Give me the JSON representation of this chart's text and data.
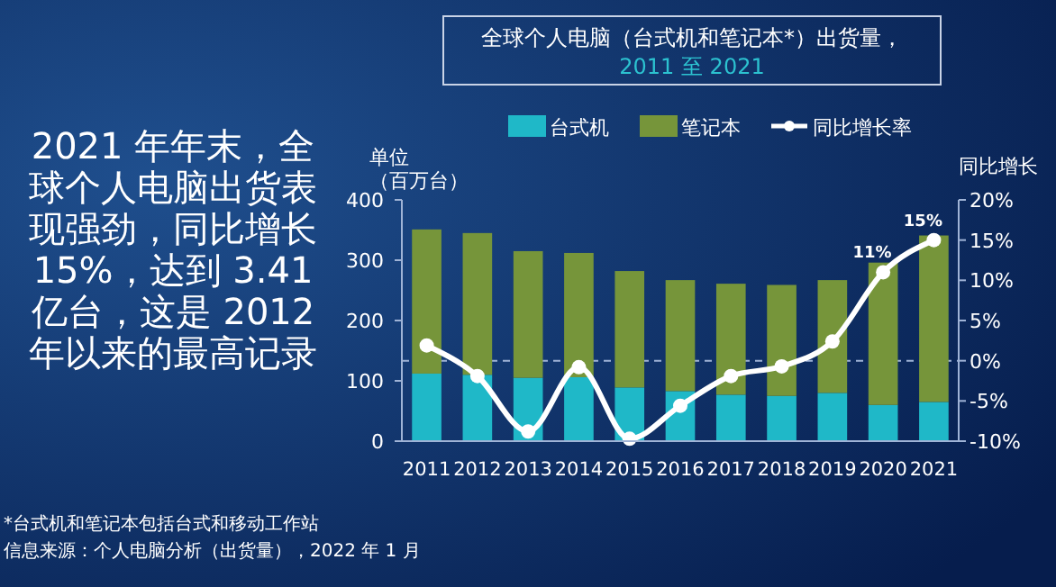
{
  "chart_data": {
    "type": "bar",
    "stacked": true,
    "title": "全球个人电脑（台式机和笔记本*）出货量，",
    "subtitle": "2011 至 2021",
    "ylabel": "单位（百万台）",
    "y2label": "同比增长",
    "categories": [
      "2011",
      "2012",
      "2013",
      "2014",
      "2015",
      "2016",
      "2017",
      "2018",
      "2019",
      "2020",
      "2021"
    ],
    "series": [
      {
        "name": "台式机",
        "color": "#1fb8c8",
        "values": [
          112,
          110,
          105,
          106,
          89,
          83,
          77,
          75,
          80,
          60,
          65
        ]
      },
      {
        "name": "笔记本",
        "color": "#76953a",
        "values": [
          239,
          235,
          210,
          206,
          193,
          184,
          184,
          184,
          187,
          236,
          276
        ]
      },
      {
        "name": "同比增长率",
        "type": "line",
        "axis": "y2",
        "color": "#ffffff",
        "marker": "circle",
        "values": [
          1.9,
          -1.9,
          -8.8,
          -0.8,
          -9.7,
          -5.6,
          -1.9,
          -0.7,
          2.4,
          11,
          15
        ],
        "value_labels": [
          null,
          null,
          null,
          null,
          null,
          null,
          null,
          null,
          null,
          "11%",
          "15%"
        ]
      }
    ],
    "ylim": [
      0,
      400
    ],
    "yticks": [
      0,
      100,
      200,
      300,
      400
    ],
    "y2lim": [
      -10,
      20
    ],
    "y2ticks": [
      {
        "value": -10,
        "label": "-10%"
      },
      {
        "value": -5,
        "label": "-5%"
      },
      {
        "value": 0,
        "label": "0%"
      },
      {
        "value": 5,
        "label": "5%"
      },
      {
        "value": 10,
        "label": "10%"
      },
      {
        "value": 15,
        "label": "15%"
      },
      {
        "value": 20,
        "label": "20%"
      }
    ],
    "ref_lines": [
      {
        "axis": "y2",
        "value": 0,
        "line_style": "dashed",
        "color": "#9fb3d6"
      }
    ],
    "legend": "top",
    "grid": false,
    "annotations": [
      "2021 年年末，全球个人电脑出货表现强劲，同比增长 15%，达到 3.41 亿台，这是 2012 年以来的最高记录",
      "*台式机和笔记本包括台式和移动工作站",
      "信息来源：个人电脑分析（出货量），2022 年 1 月"
    ]
  }
}
